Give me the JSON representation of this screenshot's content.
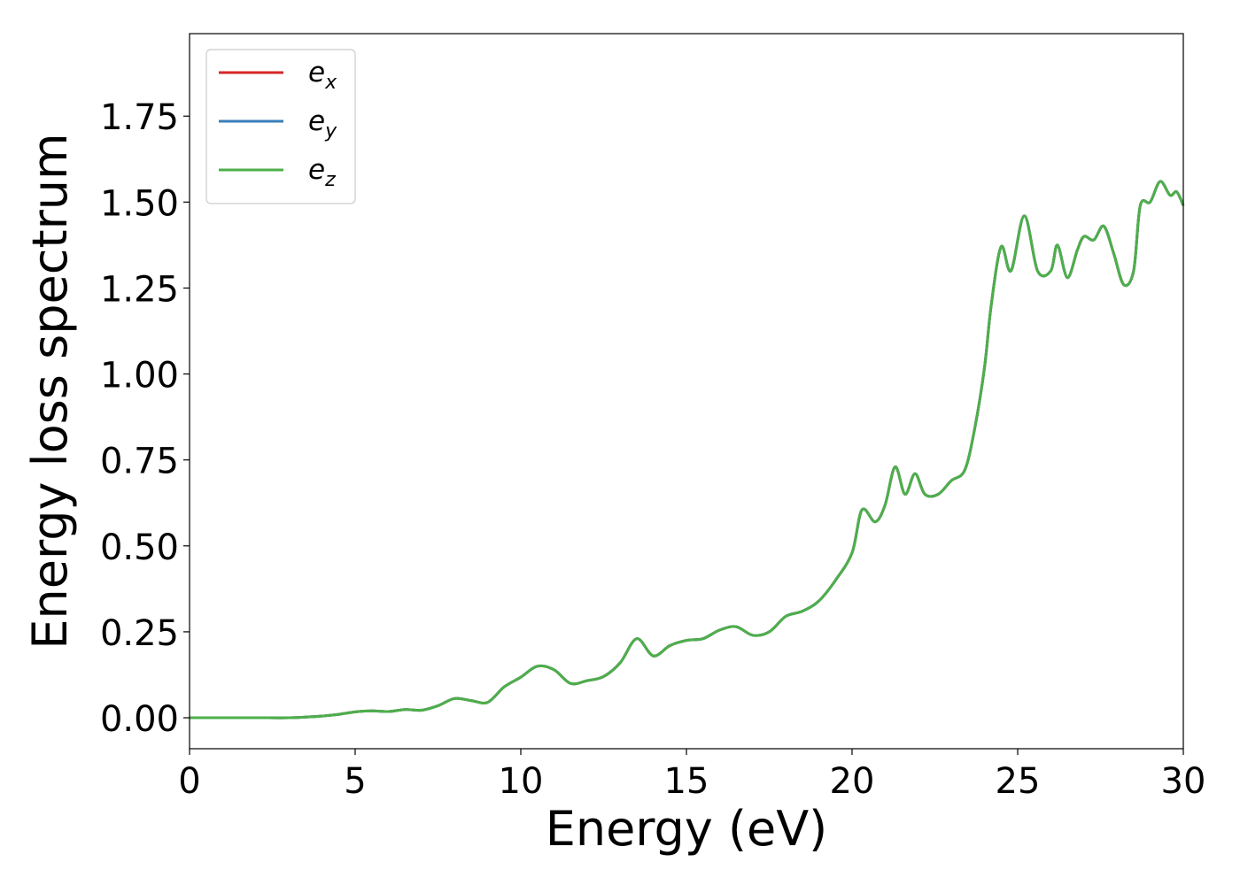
{
  "chart_data": {
    "type": "line",
    "xlabel": "Energy (eV)",
    "ylabel": "Energy loss spectrum",
    "xlim": [
      0,
      30
    ],
    "ylim": [
      -0.09,
      1.99
    ],
    "xticks": [
      0,
      5,
      10,
      15,
      20,
      25,
      30
    ],
    "xtick_labels": [
      "0",
      "5",
      "10",
      "15",
      "20",
      "25",
      "30"
    ],
    "yticks": [
      0.0,
      0.25,
      0.5,
      0.75,
      1.0,
      1.25,
      1.5,
      1.75
    ],
    "ytick_labels": [
      "0.00",
      "0.25",
      "0.50",
      "0.75",
      "1.00",
      "1.25",
      "1.50",
      "1.75"
    ],
    "grid": false,
    "legend_position": "top-left",
    "series": [
      {
        "name": "e",
        "subscript": "x",
        "color": "#d62728",
        "x": [
          0,
          1,
          2,
          3,
          3.5,
          4,
          4.5,
          5,
          5.5,
          6,
          6.5,
          7,
          7.5,
          8,
          8.5,
          9,
          9.5,
          10,
          10.5,
          11,
          11.5,
          12,
          12.5,
          13,
          13.5,
          14,
          14.5,
          15,
          15.5,
          16,
          16.5,
          17,
          17.5,
          18,
          18.5,
          19,
          19.5,
          20,
          20.3,
          20.7,
          21,
          21.3,
          21.6,
          21.9,
          22.2,
          22.6,
          23,
          23.4,
          23.7,
          24,
          24.2,
          24.5,
          24.8,
          25.2,
          25.6,
          26,
          26.2,
          26.5,
          26.8,
          27,
          27.3,
          27.6,
          27.9,
          28.2,
          28.5,
          28.7,
          29,
          29.3,
          29.6,
          29.8,
          30
        ],
        "y": [
          0.0,
          0.0,
          0.0,
          0.0,
          0.002,
          0.005,
          0.01,
          0.017,
          0.02,
          0.018,
          0.024,
          0.022,
          0.035,
          0.056,
          0.05,
          0.045,
          0.09,
          0.118,
          0.15,
          0.14,
          0.1,
          0.108,
          0.12,
          0.16,
          0.23,
          0.18,
          0.21,
          0.225,
          0.23,
          0.255,
          0.265,
          0.24,
          0.25,
          0.295,
          0.31,
          0.34,
          0.4,
          0.48,
          0.605,
          0.57,
          0.62,
          0.73,
          0.65,
          0.71,
          0.65,
          0.65,
          0.69,
          0.72,
          0.84,
          1.02,
          1.2,
          1.37,
          1.3,
          1.46,
          1.3,
          1.3,
          1.375,
          1.28,
          1.36,
          1.4,
          1.39,
          1.43,
          1.35,
          1.26,
          1.3,
          1.49,
          1.5,
          1.56,
          1.52,
          1.53,
          1.49
        ]
      },
      {
        "name": "e",
        "subscript": "y",
        "color": "#377eb8",
        "x": [
          0,
          1,
          2,
          3,
          3.5,
          4,
          4.5,
          5,
          5.5,
          6,
          6.5,
          7,
          7.5,
          8,
          8.5,
          9,
          9.5,
          10,
          10.5,
          11,
          11.5,
          12,
          12.5,
          13,
          13.5,
          14,
          14.5,
          15,
          15.5,
          16,
          16.5,
          17,
          17.5,
          18,
          18.5,
          19,
          19.5,
          20,
          20.3,
          20.7,
          21,
          21.3,
          21.6,
          21.9,
          22.2,
          22.6,
          23,
          23.4,
          23.7,
          24,
          24.2,
          24.5,
          24.8,
          25.2,
          25.6,
          26,
          26.2,
          26.5,
          26.8,
          27,
          27.3,
          27.6,
          27.9,
          28.2,
          28.5,
          28.7,
          29,
          29.3,
          29.6,
          29.8,
          30
        ],
        "y": [
          0.0,
          0.0,
          0.0,
          0.0,
          0.002,
          0.005,
          0.01,
          0.017,
          0.02,
          0.018,
          0.024,
          0.022,
          0.035,
          0.056,
          0.05,
          0.045,
          0.09,
          0.118,
          0.15,
          0.14,
          0.1,
          0.108,
          0.12,
          0.16,
          0.23,
          0.18,
          0.21,
          0.225,
          0.23,
          0.255,
          0.265,
          0.24,
          0.25,
          0.295,
          0.31,
          0.34,
          0.4,
          0.48,
          0.605,
          0.57,
          0.62,
          0.73,
          0.65,
          0.71,
          0.65,
          0.65,
          0.69,
          0.72,
          0.84,
          1.02,
          1.2,
          1.37,
          1.3,
          1.46,
          1.3,
          1.3,
          1.375,
          1.28,
          1.36,
          1.4,
          1.39,
          1.43,
          1.35,
          1.26,
          1.3,
          1.49,
          1.5,
          1.56,
          1.52,
          1.53,
          1.49
        ]
      },
      {
        "name": "e",
        "subscript": "z",
        "color": "#4daf4a",
        "x": [
          0,
          1,
          2,
          3,
          3.5,
          4,
          4.5,
          5,
          5.5,
          6,
          6.5,
          7,
          7.5,
          8,
          8.5,
          9,
          9.5,
          10,
          10.5,
          11,
          11.5,
          12,
          12.5,
          13,
          13.5,
          14,
          14.5,
          15,
          15.5,
          16,
          16.5,
          17,
          17.5,
          18,
          18.5,
          19,
          19.5,
          20,
          20.3,
          20.7,
          21,
          21.3,
          21.6,
          21.9,
          22.2,
          22.6,
          23,
          23.4,
          23.7,
          24,
          24.2,
          24.5,
          24.8,
          25.2,
          25.6,
          26,
          26.2,
          26.5,
          26.8,
          27,
          27.3,
          27.6,
          27.9,
          28.2,
          28.5,
          28.7,
          29,
          29.3,
          29.6,
          29.8,
          30
        ],
        "y": [
          0.0,
          0.0,
          0.0,
          0.0,
          0.002,
          0.005,
          0.01,
          0.017,
          0.02,
          0.018,
          0.024,
          0.022,
          0.035,
          0.056,
          0.05,
          0.045,
          0.09,
          0.118,
          0.15,
          0.14,
          0.1,
          0.108,
          0.12,
          0.16,
          0.23,
          0.18,
          0.21,
          0.225,
          0.23,
          0.255,
          0.265,
          0.24,
          0.25,
          0.295,
          0.31,
          0.34,
          0.4,
          0.48,
          0.605,
          0.57,
          0.62,
          0.73,
          0.65,
          0.71,
          0.65,
          0.65,
          0.69,
          0.72,
          0.84,
          1.02,
          1.2,
          1.37,
          1.3,
          1.46,
          1.3,
          1.3,
          1.375,
          1.28,
          1.36,
          1.4,
          1.39,
          1.43,
          1.35,
          1.26,
          1.3,
          1.49,
          1.5,
          1.56,
          1.52,
          1.53,
          1.49
        ]
      }
    ]
  }
}
